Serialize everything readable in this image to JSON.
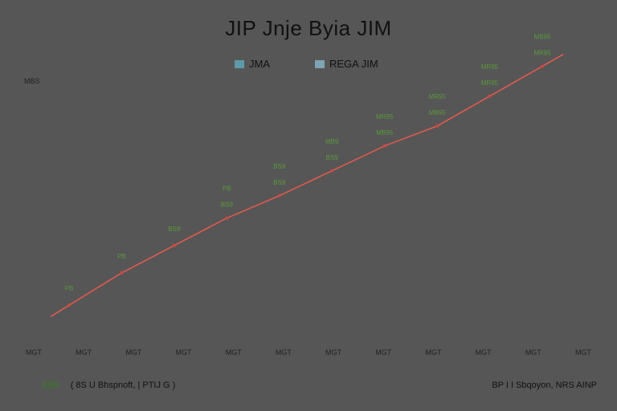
{
  "colors": {
    "background": "#565656",
    "line": "#e05a50",
    "marker": "#c94a42",
    "label": "#6fae45",
    "legend_a": "#5f9aa8",
    "legend_b": "#7fa4b4"
  },
  "chart_data": {
    "type": "line",
    "title": "JIP Jnje  Byia JIM",
    "ytick_top": "MBS",
    "legend": [
      {
        "label": "JMA",
        "color": "#5f9aa8"
      },
      {
        "label": "REGA JIM",
        "color": "#7fa4b4"
      }
    ],
    "xticks": [
      "MGT",
      "MGT",
      "MGT",
      "MGT",
      "MGT",
      "MGT",
      "MGT",
      "MGT",
      "MGT",
      "MGT",
      "MGT",
      "MGT"
    ],
    "ylim": [
      0,
      100
    ],
    "series": [
      {
        "values": [
          8,
          21,
          32,
          43,
          52,
          62,
          72,
          80,
          92,
          104
        ],
        "labels_upper": [
          "PB",
          "PB",
          "BS9",
          "PB",
          "BS9",
          "MB9",
          "MR95",
          "MR95",
          "MR95",
          "MB95"
        ],
        "labels_lower": [
          "",
          "",
          "",
          "BS9",
          "BS9",
          "BS9",
          "MB95",
          "MB95",
          "MR95",
          "MR95"
        ]
      }
    ]
  },
  "footer": {
    "left_green": "BBR",
    "left_text": "( 8S U  Bhspnoft, |  PTIJ G )",
    "right_text": "BP  I I    Sbqoyon,  NRS AINP"
  }
}
